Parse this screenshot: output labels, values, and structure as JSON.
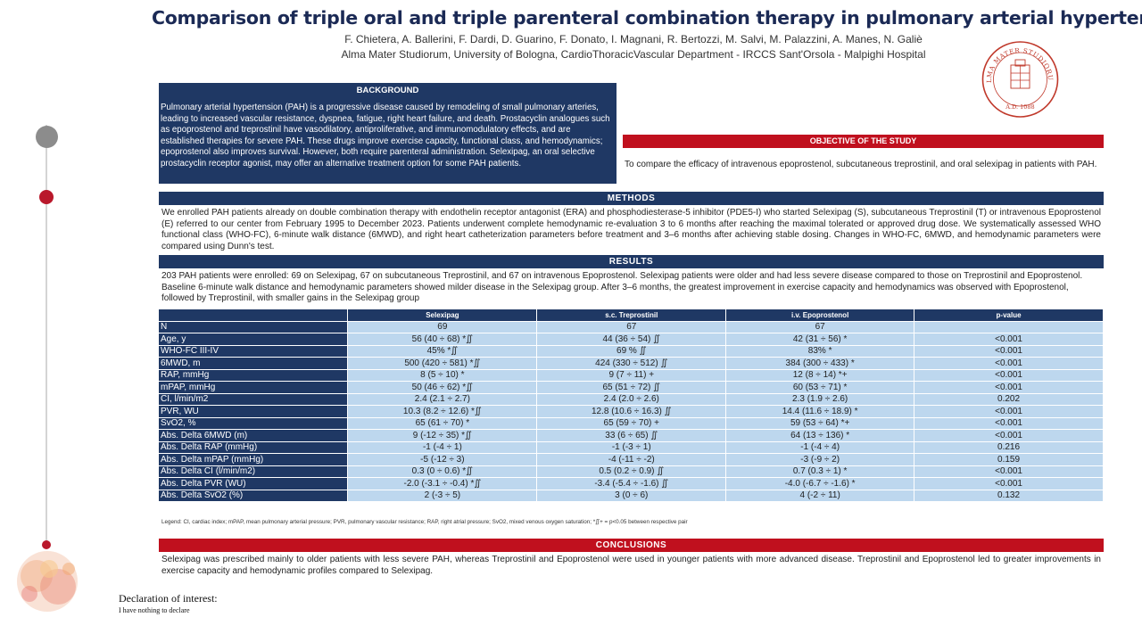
{
  "header": {
    "title": "Comparison of triple oral and triple parenteral combination therapy in pulmonary arterial hypertension",
    "authors": "F. Chietera, A. Ballerini, F. Dardi, D. Guarino,  F. Donato, I. Magnani, R. Bertozzi, M. Salvi, M. Palazzini, A. Manes, N. Galiè",
    "affiliation": "Alma Mater Studiorum, University of Bologna, CardioThoracicVascular Department - IRCCS Sant'Orsola - Malpighi Hospital"
  },
  "logo": {
    "text_top": "ALMA MATER STUDIORUM",
    "text_bottom": "A.D. 1088",
    "color": "#c0392b"
  },
  "background": {
    "heading": "BACKGROUND",
    "text": "Pulmonary arterial hypertension (PAH) is a progressive disease caused by remodeling of small pulmonary arteries, leading to increased vascular resistance, dyspnea, fatigue, right heart failure, and death. Prostacyclin analogues such as epoprostenol and treprostinil have vasodilatory, antiproliferative, and immunomodulatory effects, and are established therapies for severe PAH. These drugs improve exercise capacity, functional class, and hemodynamics; epoprostenol also improves survival. However, both require parenteral administration. Selexipag, an oral selective prostacyclin receptor agonist, may offer an alternative treatment option for some PAH patients."
  },
  "objective": {
    "heading": "OBJECTIVE OF THE STUDY",
    "text": "To compare the efficacy of intravenous epoprostenol, subcutaneous treprostinil, and oral selexipag in patients with PAH."
  },
  "methods": {
    "heading": "METHODS",
    "text": "We enrolled PAH patients already on double combination therapy with endothelin receptor antagonist (ERA) and phosphodiesterase-5 inhibitor (PDE5-I) who started Selexipag (S), subcutaneous Treprostinil (T) or intravenous Epoprostenol (E) referred to our center from February 1995 to December 2023. Patients underwent complete hemodynamic re-evaluation 3 to 6 months after reaching the maximal tolerated or approved drug dose. We systematically assessed WHO functional class (WHO-FC), 6-minute walk distance (6MWD), and right heart catheterization parameters before treatment and 3–6 months after achieving stable dosing. Changes in WHO-FC, 6MWD, and hemodynamic parameters were compared using Dunn's test."
  },
  "results": {
    "heading": "RESULTS",
    "text": "203 PAH patients were enrolled: 69 on Selexipag, 67 on subcutaneous Treprostinil, and 67 on intravenous Epoprostenol. Selexipag patients were older and had less severe disease compared to those on Treprostinil and Epoprostenol. Baseline 6-minute walk distance and hemodynamic parameters showed milder disease in the Selexipag group. After 3–6 months, the greatest improvement in exercise capacity and hemodynamics was observed with Epoprostenol, followed by Treprostinil, with smaller gains in the Selexipag group"
  },
  "table": {
    "columns": [
      "",
      "Selexipag",
      "s.c. Treprostinil",
      "i.v. Epoprostenol",
      "p-value"
    ],
    "rows": [
      [
        "N",
        "69",
        "67",
        "67",
        ""
      ],
      [
        " Age, y",
        "56 (40 ÷  68) *∬",
        "44 (36 ÷ 54) ∬",
        "42 (31 ÷  56) *",
        "<0.001"
      ],
      [
        "WHO-FC III-IV",
        "45% *∬",
        "69 % ∬",
        "83% *",
        "<0.001"
      ],
      [
        "6MWD, m",
        "500 (420 ÷  581) *∬",
        "424 (330 ÷ 512) ∬",
        "384 (300 ÷  433) *",
        "<0.001"
      ],
      [
        "RAP, mmHg",
        "8 (5 ÷ 10) *",
        "9 (7 ÷ 11) +",
        "12 (8 ÷ 14) *+",
        "<0.001"
      ],
      [
        "mPAP, mmHg",
        "50 (46 ÷ 62) *∬",
        "65 (51 ÷ 72) ∬",
        "60 (53 ÷  71) *",
        "<0.001"
      ],
      [
        "CI, l/min/m2",
        "2.4 (2.1 ÷ 2.7)",
        "2.4 (2.0 ÷  2.6)",
        "2.3 (1.9 ÷  2.6)",
        "0.202"
      ],
      [
        "PVR, WU",
        "10.3 (8.2 ÷ 12.6) *∬",
        "12.8 (10.6 ÷ 16.3) ∬",
        "14.4 (11.6 ÷ 18.9) *",
        "<0.001"
      ],
      [
        " SvO2, %",
        "65 (61 ÷ 70) *",
        "65 (59 ÷ 70) +",
        "59 (53 ÷ 64) *+",
        "<0.001"
      ],
      [
        " Abs. Delta 6MWD (m)",
        "9 (-12 ÷ 35) *∬",
        "33 (6 ÷ 65) ∬",
        "64 (13 ÷ 136) *",
        "<0.001"
      ],
      [
        " Abs. Delta RAP (mmHg)",
        "-1 (-4 ÷ 1)",
        "-1 (-3 ÷ 1)",
        "-1 (-4 ÷ 4)",
        "0.216"
      ],
      [
        " Abs. Delta mPAP (mmHg)",
        "-5 (-12 ÷ 3)",
        "-4 (-11 ÷ -2)",
        "-3 (-9 ÷ 2)",
        "0.159"
      ],
      [
        " Abs. Delta CI (l/min/m2)",
        "0.3 (0 ÷ 0.6) *∬",
        "0.5 (0.2 ÷ 0.9) ∬",
        "0.7 (0.3 ÷ 1) *",
        "<0.001"
      ],
      [
        " Abs. Delta PVR (WU)",
        "-2.0 (-3.1 ÷ -0.4) *∬",
        "-3.4 (-5.4 ÷ -1.6) ∬",
        "-4.0 (-6.7 ÷ -1.6) *",
        "<0.001"
      ],
      [
        " Abs. Delta SvO2 (%)",
        "2 (-3 ÷ 5)",
        "3 (0 ÷ 6)",
        "4 (-2 ÷ 11)",
        "0.132"
      ]
    ],
    "legend": "Legend: CI, cardiac index; mPAP, mean pulmonary arterial pressure; PVR, pulmonary vascular resistance; RAP, right atrial pressure; SvO2, mixed venous oxygen saturation; *∬+ = p<0.05 between respective pair"
  },
  "conclusions": {
    "heading": "CONCLUSIONS",
    "text": "Selexipag was prescribed mainly to older patients with less severe PAH, whereas Treprostinil and Epoprostenol were used in younger patients with more advanced disease. Treprostinil and Epoprostenol led to greater improvements in exercise capacity and hemodynamic profiles compared to Selexipag."
  },
  "declaration": {
    "title": "Declaration of interest:",
    "text": "I have nothing to declare"
  },
  "colors": {
    "navy": "#1f3864",
    "red": "#c0101e",
    "table_cell": "#bdd7ee"
  }
}
